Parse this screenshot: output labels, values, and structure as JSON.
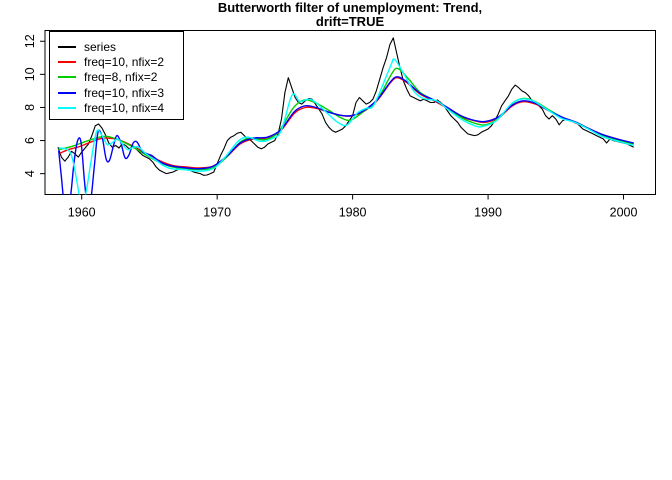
{
  "title": {
    "line1": "Butterworth filter of unemployment: Trend,",
    "line2": "drift=TRUE"
  },
  "chart_data": {
    "type": "line",
    "title": "Butterworth filter of unemployment: Trend, drift=TRUE",
    "xlabel": "",
    "ylabel": "",
    "grid": false,
    "legend_position": "topleft",
    "x_ticks": [
      1960,
      1970,
      1980,
      1990,
      2000
    ],
    "y_ticks": [
      4,
      6,
      8,
      10,
      12
    ],
    "xlim": [
      1957.29,
      2002.36
    ],
    "ylim": [
      2.74,
      12.65
    ],
    "series": [
      {
        "name": "series",
        "color": "#000000",
        "kind": "raw",
        "x_start": 1958.25,
        "x_step": 0.25,
        "values": [
          5.6,
          5.0,
          4.75,
          5.0,
          5.35,
          5.2,
          5.0,
          5.3,
          5.55,
          5.8,
          6.3,
          6.9,
          7.0,
          6.75,
          6.35,
          5.85,
          5.6,
          5.7,
          5.55,
          5.8,
          5.7,
          5.5,
          5.6,
          5.5,
          5.3,
          5.1,
          5.0,
          4.9,
          4.7,
          4.4,
          4.2,
          4.1,
          4.0,
          4.05,
          4.1,
          4.2,
          4.3,
          4.4,
          4.3,
          4.2,
          4.1,
          4.05,
          4.0,
          3.9,
          3.92,
          4.0,
          4.1,
          4.6,
          5.1,
          5.5,
          6.0,
          6.2,
          6.3,
          6.45,
          6.5,
          6.3,
          6.1,
          6.0,
          5.8,
          5.6,
          5.5,
          5.6,
          5.8,
          5.9,
          6.0,
          6.4,
          7.3,
          8.9,
          9.8,
          9.2,
          8.6,
          8.3,
          8.2,
          8.4,
          8.55,
          8.5,
          8.2,
          7.9,
          7.6,
          7.1,
          6.8,
          6.6,
          6.5,
          6.6,
          6.7,
          6.9,
          7.2,
          7.5,
          8.3,
          8.6,
          8.4,
          8.2,
          8.3,
          8.5,
          9.0,
          9.7,
          10.4,
          11.0,
          11.8,
          12.2,
          11.3,
          10.4,
          9.6,
          9.1,
          8.7,
          8.6,
          8.5,
          8.4,
          8.5,
          8.4,
          8.3,
          8.3,
          8.45,
          8.3,
          8.1,
          7.8,
          7.5,
          7.3,
          7.1,
          6.8,
          6.6,
          6.4,
          6.35,
          6.3,
          6.35,
          6.5,
          6.6,
          6.7,
          6.9,
          7.2,
          7.6,
          8.1,
          8.4,
          8.7,
          9.1,
          9.35,
          9.2,
          9.0,
          8.9,
          8.7,
          8.4,
          8.3,
          8.1,
          7.9,
          7.5,
          7.3,
          7.5,
          7.3,
          6.95,
          7.2,
          7.3,
          7.2,
          7.15,
          7.1,
          6.9,
          6.7,
          6.6,
          6.5,
          6.4,
          6.3,
          6.2,
          6.1,
          5.85,
          6.1,
          6.0,
          5.95,
          5.9,
          5.85,
          5.8,
          5.7,
          5.6
        ]
      },
      {
        "name": "freq=10, nfix=2",
        "color": "#FF0000",
        "kind": "smooth",
        "points": [
          [
            1958.3,
            5.2
          ],
          [
            1959.0,
            5.45
          ],
          [
            1959.7,
            5.6
          ],
          [
            1960.5,
            5.85
          ],
          [
            1961.3,
            6.1
          ],
          [
            1961.9,
            6.15
          ],
          [
            1962.7,
            6.05
          ],
          [
            1963.7,
            5.7
          ],
          [
            1964.7,
            5.25
          ],
          [
            1965.7,
            4.8
          ],
          [
            1966.7,
            4.5
          ],
          [
            1967.7,
            4.4
          ],
          [
            1968.7,
            4.35
          ],
          [
            1969.7,
            4.45
          ],
          [
            1970.7,
            5.0
          ],
          [
            1971.7,
            5.8
          ],
          [
            1972.7,
            6.1
          ],
          [
            1973.7,
            6.15
          ],
          [
            1974.7,
            6.6
          ],
          [
            1975.7,
            7.65
          ],
          [
            1976.5,
            8.0
          ],
          [
            1977.3,
            7.95
          ],
          [
            1978.3,
            7.7
          ],
          [
            1979.3,
            7.5
          ],
          [
            1980.0,
            7.5
          ],
          [
            1980.8,
            7.75
          ],
          [
            1981.8,
            8.4
          ],
          [
            1982.8,
            9.5
          ],
          [
            1983.3,
            9.8
          ],
          [
            1984.0,
            9.5
          ],
          [
            1985.0,
            8.8
          ],
          [
            1986.0,
            8.4
          ],
          [
            1987.0,
            7.95
          ],
          [
            1988.0,
            7.45
          ],
          [
            1989.0,
            7.2
          ],
          [
            1989.8,
            7.1
          ],
          [
            1990.8,
            7.4
          ],
          [
            1991.8,
            8.1
          ],
          [
            1992.6,
            8.35
          ],
          [
            1993.5,
            8.2
          ],
          [
            1994.5,
            7.8
          ],
          [
            1995.5,
            7.4
          ],
          [
            1996.5,
            7.05
          ],
          [
            1997.5,
            6.7
          ],
          [
            1998.5,
            6.35
          ],
          [
            1999.5,
            6.1
          ],
          [
            2000.75,
            5.8
          ]
        ]
      },
      {
        "name": "freq=8, nfix=2",
        "color": "#00CD00",
        "kind": "smooth",
        "points": [
          [
            1958.3,
            5.45
          ],
          [
            1959.3,
            5.65
          ],
          [
            1960.3,
            5.95
          ],
          [
            1961.3,
            6.2
          ],
          [
            1961.9,
            6.25
          ],
          [
            1962.7,
            6.05
          ],
          [
            1963.7,
            5.65
          ],
          [
            1964.7,
            5.15
          ],
          [
            1965.7,
            4.7
          ],
          [
            1966.7,
            4.4
          ],
          [
            1967.7,
            4.3
          ],
          [
            1968.7,
            4.25
          ],
          [
            1969.7,
            4.35
          ],
          [
            1970.7,
            5.0
          ],
          [
            1971.7,
            5.9
          ],
          [
            1972.5,
            6.15
          ],
          [
            1973.5,
            6.05
          ],
          [
            1974.5,
            6.5
          ],
          [
            1975.6,
            7.95
          ],
          [
            1976.4,
            8.45
          ],
          [
            1977.2,
            8.3
          ],
          [
            1978.2,
            7.85
          ],
          [
            1979.2,
            7.35
          ],
          [
            1979.9,
            7.25
          ],
          [
            1980.8,
            7.75
          ],
          [
            1981.8,
            8.45
          ],
          [
            1982.9,
            10.05
          ],
          [
            1983.35,
            10.35
          ],
          [
            1984.1,
            9.75
          ],
          [
            1985.0,
            8.9
          ],
          [
            1986.0,
            8.45
          ],
          [
            1987.0,
            8.0
          ],
          [
            1988.0,
            7.4
          ],
          [
            1989.0,
            7.05
          ],
          [
            1989.8,
            6.95
          ],
          [
            1990.8,
            7.35
          ],
          [
            1991.8,
            8.25
          ],
          [
            1992.6,
            8.55
          ],
          [
            1993.5,
            8.35
          ],
          [
            1994.5,
            7.85
          ],
          [
            1995.5,
            7.4
          ],
          [
            1996.5,
            7.1
          ],
          [
            1997.5,
            6.7
          ],
          [
            1998.5,
            6.3
          ],
          [
            1999.5,
            6.05
          ],
          [
            2000.75,
            5.8
          ]
        ]
      },
      {
        "name": "freq=10, nfix=3",
        "color": "#0000FF",
        "kind": "smooth",
        "points": [
          [
            1958.3,
            5.4
          ],
          [
            1958.5,
            3.8
          ],
          [
            1958.7,
            2.2
          ],
          [
            1958.95,
            1.6
          ],
          [
            1959.2,
            2.8
          ],
          [
            1959.45,
            4.8
          ],
          [
            1959.7,
            6.0
          ],
          [
            1959.95,
            5.9
          ],
          [
            1960.2,
            3.6
          ],
          [
            1960.45,
            1.9
          ],
          [
            1960.7,
            2.6
          ],
          [
            1960.95,
            4.6
          ],
          [
            1961.2,
            6.5
          ],
          [
            1961.5,
            6.25
          ],
          [
            1961.8,
            4.9
          ],
          [
            1962.05,
            4.8
          ],
          [
            1962.35,
            5.7
          ],
          [
            1962.6,
            6.3
          ],
          [
            1962.9,
            5.85
          ],
          [
            1963.2,
            4.95
          ],
          [
            1963.5,
            5.15
          ],
          [
            1963.8,
            5.85
          ],
          [
            1964.1,
            5.9
          ],
          [
            1964.45,
            5.35
          ],
          [
            1964.8,
            5.2
          ],
          [
            1965.15,
            5.1
          ],
          [
            1965.55,
            4.85
          ],
          [
            1966.05,
            4.6
          ],
          [
            1966.7,
            4.45
          ],
          [
            1967.7,
            4.35
          ],
          [
            1968.7,
            4.3
          ],
          [
            1969.7,
            4.45
          ],
          [
            1970.7,
            5.05
          ],
          [
            1971.7,
            5.85
          ],
          [
            1972.7,
            6.15
          ],
          [
            1973.7,
            6.2
          ],
          [
            1974.7,
            6.65
          ],
          [
            1975.7,
            7.75
          ],
          [
            1976.5,
            8.1
          ],
          [
            1977.3,
            8.0
          ],
          [
            1978.3,
            7.7
          ],
          [
            1979.3,
            7.5
          ],
          [
            1980.0,
            7.52
          ],
          [
            1980.8,
            7.8
          ],
          [
            1981.8,
            8.45
          ],
          [
            1982.8,
            9.55
          ],
          [
            1983.3,
            9.85
          ],
          [
            1984.0,
            9.55
          ],
          [
            1985.0,
            8.85
          ],
          [
            1986.0,
            8.45
          ],
          [
            1987.0,
            8.0
          ],
          [
            1988.0,
            7.5
          ],
          [
            1989.0,
            7.22
          ],
          [
            1989.8,
            7.15
          ],
          [
            1990.8,
            7.45
          ],
          [
            1991.8,
            8.15
          ],
          [
            1992.6,
            8.4
          ],
          [
            1993.5,
            8.25
          ],
          [
            1994.5,
            7.8
          ],
          [
            1995.5,
            7.4
          ],
          [
            1996.5,
            7.1
          ],
          [
            1997.5,
            6.7
          ],
          [
            1998.5,
            6.35
          ],
          [
            1999.5,
            6.1
          ],
          [
            2000.75,
            5.85
          ]
        ]
      },
      {
        "name": "freq=10, nfix=4",
        "color": "#00FFFF",
        "kind": "smooth",
        "points": [
          [
            1958.3,
            5.55
          ],
          [
            1958.8,
            5.5
          ],
          [
            1959.2,
            5.2
          ],
          [
            1959.5,
            4.2
          ],
          [
            1959.8,
            2.8
          ],
          [
            1960.05,
            2.2
          ],
          [
            1960.35,
            3.0
          ],
          [
            1960.7,
            4.8
          ],
          [
            1961.1,
            6.55
          ],
          [
            1961.5,
            6.3
          ],
          [
            1961.9,
            5.75
          ],
          [
            1962.3,
            5.9
          ],
          [
            1962.65,
            6.1
          ],
          [
            1963.0,
            5.8
          ],
          [
            1963.4,
            5.45
          ],
          [
            1963.8,
            5.6
          ],
          [
            1964.2,
            5.6
          ],
          [
            1964.6,
            5.3
          ],
          [
            1965.0,
            5.05
          ],
          [
            1965.5,
            4.8
          ],
          [
            1966.0,
            4.5
          ],
          [
            1966.6,
            4.3
          ],
          [
            1967.5,
            4.25
          ],
          [
            1968.5,
            4.15
          ],
          [
            1969.3,
            4.2
          ],
          [
            1969.9,
            4.4
          ],
          [
            1970.7,
            5.1
          ],
          [
            1971.6,
            6.0
          ],
          [
            1972.3,
            6.2
          ],
          [
            1973.2,
            5.95
          ],
          [
            1974.0,
            6.1
          ],
          [
            1974.7,
            6.55
          ],
          [
            1975.4,
            8.5
          ],
          [
            1975.7,
            8.8
          ],
          [
            1976.1,
            8.35
          ],
          [
            1976.7,
            8.5
          ],
          [
            1977.2,
            8.35
          ],
          [
            1978.2,
            7.6
          ],
          [
            1979.0,
            7.05
          ],
          [
            1979.6,
            6.95
          ],
          [
            1980.4,
            7.7
          ],
          [
            1981.0,
            7.95
          ],
          [
            1981.6,
            8.2
          ],
          [
            1982.8,
            10.5
          ],
          [
            1983.1,
            10.9
          ],
          [
            1983.8,
            10.0
          ],
          [
            1984.5,
            9.0
          ],
          [
            1985.2,
            8.55
          ],
          [
            1986.2,
            8.4
          ],
          [
            1987.0,
            7.9
          ],
          [
            1988.0,
            7.3
          ],
          [
            1989.0,
            6.9
          ],
          [
            1989.6,
            6.85
          ],
          [
            1990.6,
            7.2
          ],
          [
            1991.7,
            8.2
          ],
          [
            1992.4,
            8.5
          ],
          [
            1993.3,
            8.4
          ],
          [
            1994.4,
            7.85
          ],
          [
            1995.4,
            7.35
          ],
          [
            1996.4,
            7.1
          ],
          [
            1997.4,
            6.7
          ],
          [
            1998.4,
            6.25
          ],
          [
            1999.4,
            6.0
          ],
          [
            2000.3,
            5.8
          ],
          [
            2000.75,
            5.7
          ]
        ]
      }
    ]
  }
}
